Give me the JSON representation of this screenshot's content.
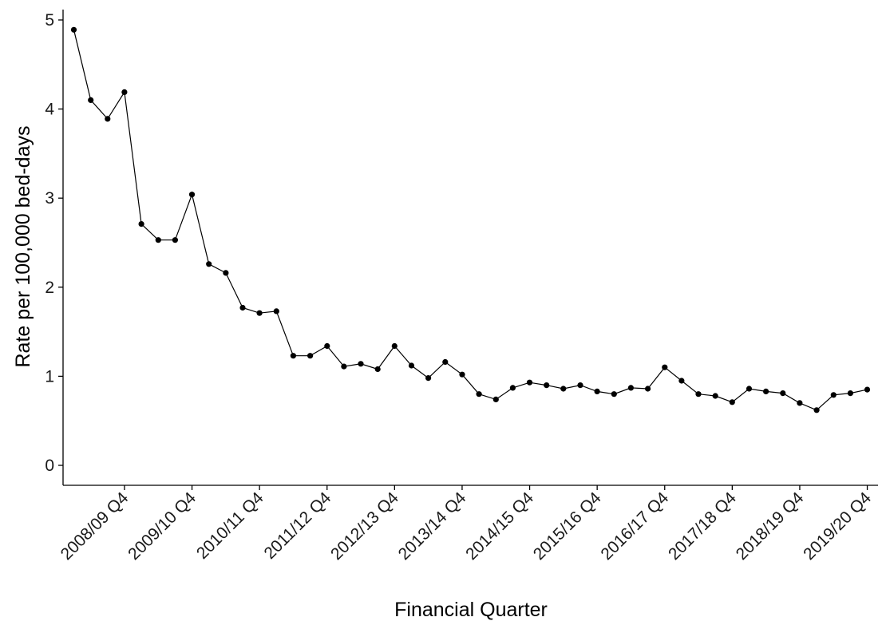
{
  "chart_data": {
    "type": "line",
    "title": "",
    "xlabel": "Financial Quarter",
    "ylabel": "Rate per 100,000 bed-days",
    "ylim": [
      0,
      5
    ],
    "y_ticks": [
      0,
      1,
      2,
      3,
      4,
      5
    ],
    "grid": false,
    "legend": "none",
    "x_tick_labels": [
      "2008/09 Q4",
      "2009/10 Q4",
      "2010/11 Q4",
      "2011/12 Q4",
      "2012/13 Q4",
      "2013/14 Q4",
      "2014/15 Q4",
      "2015/16 Q4",
      "2016/17 Q4",
      "2017/18 Q4",
      "2018/19 Q4",
      "2019/20 Q4"
    ],
    "x_tick_positions": [
      4,
      8,
      12,
      16,
      20,
      24,
      28,
      32,
      36,
      40,
      44,
      48
    ],
    "line_color": "#000000",
    "series": [
      {
        "x": [
          1,
          2,
          3,
          4,
          5,
          6,
          7,
          8,
          9,
          10,
          11,
          12,
          13,
          14,
          15,
          16,
          17,
          18,
          19,
          20,
          21,
          22,
          23,
          24,
          25,
          26,
          27,
          28,
          29,
          30,
          31,
          32,
          33,
          34,
          35,
          36,
          37,
          38,
          39,
          40,
          41,
          42,
          43,
          44,
          45,
          46,
          47,
          48
        ],
        "values": [
          4.89,
          4.1,
          3.89,
          4.19,
          2.71,
          2.53,
          2.53,
          3.04,
          2.26,
          2.16,
          1.77,
          1.71,
          1.73,
          1.23,
          1.23,
          1.34,
          1.11,
          1.14,
          1.08,
          1.34,
          1.12,
          0.98,
          1.16,
          1.02,
          0.8,
          0.74,
          0.87,
          0.93,
          0.9,
          0.86,
          0.9,
          0.83,
          0.8,
          0.87,
          0.86,
          1.1,
          0.95,
          0.8,
          0.78,
          0.71,
          0.86,
          0.83,
          0.81,
          0.7,
          0.62,
          0.79,
          0.81,
          0.85
        ]
      }
    ]
  }
}
